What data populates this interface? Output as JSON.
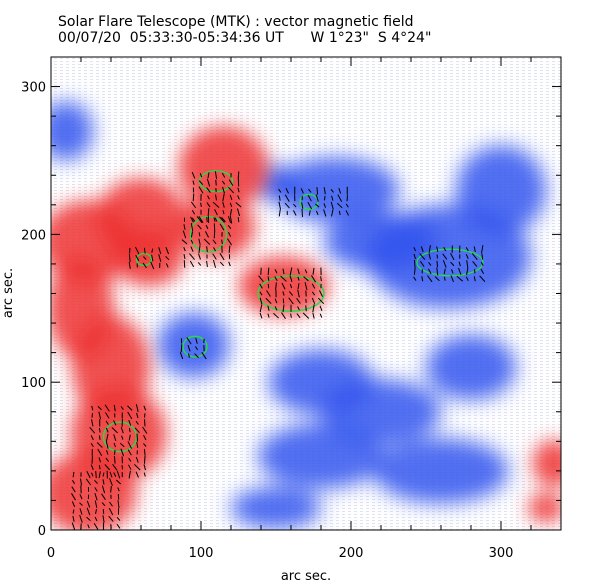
{
  "header": {
    "title": "Solar Flare Telescope (MTK) : vector magnetic field",
    "subtitle": "00/07/20  05:33:30-05:34:36 UT      W 1°23\"  S 4°24\""
  },
  "chart_data": {
    "type": "heatmap",
    "title": "Solar Flare Telescope (MTK) : vector magnetic field",
    "subtitle": "00/07/20  05:33:30-05:34:36 UT      W 1°23\"  S 4°24\"",
    "xlabel": "arc sec.",
    "ylabel": "arc sec.",
    "xlim": [
      0,
      340
    ],
    "ylim": [
      0,
      320
    ],
    "x_ticks": [
      0,
      100,
      200,
      300
    ],
    "y_ticks": [
      0,
      100,
      200,
      300
    ],
    "grid": false,
    "colors": {
      "positive_polarity": "#ee3333",
      "negative_polarity": "#3355ee",
      "contour": "#22dd44",
      "vectors": "#000000"
    },
    "positive_regions": [
      {
        "x": 25,
        "y": 195,
        "rx": 32,
        "ry": 28
      },
      {
        "x": 60,
        "y": 210,
        "rx": 30,
        "ry": 28
      },
      {
        "x": 115,
        "y": 245,
        "rx": 30,
        "ry": 28
      },
      {
        "x": 110,
        "y": 205,
        "rx": 26,
        "ry": 22
      },
      {
        "x": 65,
        "y": 185,
        "rx": 24,
        "ry": 20
      },
      {
        "x": 155,
        "y": 165,
        "rx": 30,
        "ry": 20
      },
      {
        "x": 20,
        "y": 150,
        "rx": 22,
        "ry": 35
      },
      {
        "x": 40,
        "y": 110,
        "rx": 26,
        "ry": 35
      },
      {
        "x": 45,
        "y": 65,
        "rx": 32,
        "ry": 32
      },
      {
        "x": 25,
        "y": 25,
        "rx": 32,
        "ry": 28
      },
      {
        "x": 335,
        "y": 45,
        "rx": 14,
        "ry": 16
      },
      {
        "x": 330,
        "y": 15,
        "rx": 12,
        "ry": 10
      }
    ],
    "negative_regions": [
      {
        "x": 265,
        "y": 185,
        "rx": 55,
        "ry": 35
      },
      {
        "x": 220,
        "y": 195,
        "rx": 38,
        "ry": 20
      },
      {
        "x": 190,
        "y": 230,
        "rx": 42,
        "ry": 22
      },
      {
        "x": 300,
        "y": 230,
        "rx": 30,
        "ry": 30
      },
      {
        "x": 95,
        "y": 125,
        "rx": 24,
        "ry": 22
      },
      {
        "x": 150,
        "y": 235,
        "rx": 14,
        "ry": 12
      },
      {
        "x": 180,
        "y": 100,
        "rx": 35,
        "ry": 22
      },
      {
        "x": 220,
        "y": 80,
        "rx": 40,
        "ry": 22
      },
      {
        "x": 180,
        "y": 50,
        "rx": 42,
        "ry": 22
      },
      {
        "x": 260,
        "y": 40,
        "rx": 45,
        "ry": 22
      },
      {
        "x": 150,
        "y": 15,
        "rx": 30,
        "ry": 14
      },
      {
        "x": 10,
        "y": 270,
        "rx": 18,
        "ry": 20
      },
      {
        "x": 280,
        "y": 110,
        "rx": 30,
        "ry": 22
      }
    ],
    "contours": [
      {
        "x": 110,
        "y": 236,
        "rx": 11,
        "ry": 7
      },
      {
        "x": 105,
        "y": 200,
        "rx": 12,
        "ry": 12
      },
      {
        "x": 62,
        "y": 183,
        "rx": 5,
        "ry": 4
      },
      {
        "x": 160,
        "y": 160,
        "rx": 22,
        "ry": 12
      },
      {
        "x": 172,
        "y": 222,
        "rx": 6,
        "ry": 5
      },
      {
        "x": 266,
        "y": 181,
        "rx": 22,
        "ry": 9
      },
      {
        "x": 96,
        "y": 124,
        "rx": 8,
        "ry": 7
      },
      {
        "x": 46,
        "y": 63,
        "rx": 11,
        "ry": 10
      }
    ],
    "vector_clusters": [
      {
        "x": 110,
        "y": 225,
        "w": 30,
        "h": 30
      },
      {
        "x": 105,
        "y": 195,
        "w": 32,
        "h": 30
      },
      {
        "x": 65,
        "y": 185,
        "w": 25,
        "h": 12
      },
      {
        "x": 160,
        "y": 160,
        "w": 40,
        "h": 30
      },
      {
        "x": 175,
        "y": 222,
        "w": 45,
        "h": 15
      },
      {
        "x": 265,
        "y": 180,
        "w": 45,
        "h": 20
      },
      {
        "x": 95,
        "y": 125,
        "w": 16,
        "h": 14
      },
      {
        "x": 45,
        "y": 60,
        "w": 35,
        "h": 45
      },
      {
        "x": 30,
        "y": 20,
        "w": 30,
        "h": 35
      }
    ]
  }
}
